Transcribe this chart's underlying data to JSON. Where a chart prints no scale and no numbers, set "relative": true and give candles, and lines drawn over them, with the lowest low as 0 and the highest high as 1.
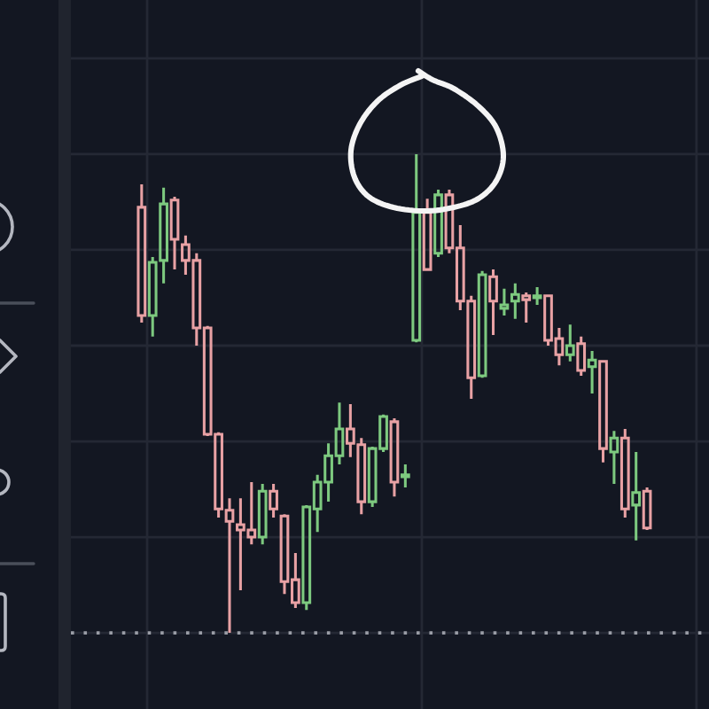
{
  "chart_data": {
    "type": "candlestick",
    "relative": true,
    "categories": [
      null,
      null,
      null,
      null,
      null,
      null,
      null,
      null,
      null,
      null,
      null,
      null,
      null,
      null,
      null,
      null,
      null,
      null,
      null,
      null,
      null,
      null,
      null,
      null,
      null,
      null,
      null,
      null,
      null,
      null,
      null,
      null,
      null,
      null,
      null,
      null,
      null,
      null,
      null,
      null,
      null,
      null,
      null,
      null,
      null,
      null,
      null
    ],
    "ohlc": [
      [
        0.889,
        0.937,
        0.648,
        0.663
      ],
      [
        0.663,
        0.785,
        0.619,
        0.774
      ],
      [
        0.778,
        0.93,
        0.73,
        0.896
      ],
      [
        0.904,
        0.911,
        0.759,
        0.822
      ],
      [
        0.811,
        0.83,
        0.748,
        0.778
      ],
      [
        0.778,
        0.793,
        0.6,
        0.637
      ],
      [
        0.637,
        0.641,
        0.411,
        0.415
      ],
      [
        0.415,
        0.419,
        0.241,
        0.259
      ],
      [
        0.256,
        0.281,
        0,
        0.233
      ],
      [
        0.226,
        0.281,
        0.089,
        0.215
      ],
      [
        0.215,
        0.315,
        0.185,
        0.2
      ],
      [
        0.2,
        0.311,
        0.185,
        0.296
      ],
      [
        0.296,
        0.311,
        0.241,
        0.259
      ],
      [
        0.244,
        0.248,
        0.081,
        0.107
      ],
      [
        0.111,
        0.167,
        0.052,
        0.063
      ],
      [
        0.063,
        0.267,
        0.048,
        0.263
      ],
      [
        0.259,
        0.33,
        0.211,
        0.315
      ],
      [
        0.315,
        0.396,
        0.274,
        0.37
      ],
      [
        0.37,
        0.481,
        0.352,
        0.426
      ],
      [
        0.426,
        0.478,
        0.367,
        0.396
      ],
      [
        0.393,
        0.407,
        0.248,
        0.274
      ],
      [
        0.274,
        0.389,
        0.263,
        0.385
      ],
      [
        0.385,
        0.456,
        0.378,
        0.452
      ],
      [
        0.441,
        0.448,
        0.285,
        0.315
      ],
      [
        0.326,
        0.352,
        0.304,
        0.33
      ],
      [
        0.611,
        1,
        0.607,
        0.878
      ],
      [
        0.878,
        0.907,
        0.759,
        0.759
      ],
      [
        0.793,
        0.926,
        0.785,
        0.915
      ],
      [
        0.915,
        0.926,
        0.793,
        0.804
      ],
      [
        0.804,
        0.852,
        0.674,
        0.693
      ],
      [
        0.693,
        0.704,
        0.489,
        0.533
      ],
      [
        0.537,
        0.756,
        0.533,
        0.748
      ],
      [
        0.744,
        0.759,
        0.622,
        0.693
      ],
      [
        0.678,
        0.719,
        0.663,
        0.685
      ],
      [
        0.693,
        0.73,
        0.656,
        0.707
      ],
      [
        0.704,
        0.711,
        0.648,
        0.696
      ],
      [
        0.7,
        0.722,
        0.685,
        0.704
      ],
      [
        0.704,
        0.704,
        0.6,
        0.611
      ],
      [
        0.615,
        0.637,
        0.559,
        0.581
      ],
      [
        0.581,
        0.644,
        0.567,
        0.6
      ],
      [
        0.604,
        0.619,
        0.537,
        0.548
      ],
      [
        0.556,
        0.589,
        0.5,
        0.57
      ],
      [
        0.567,
        0.57,
        0.356,
        0.385
      ],
      [
        0.378,
        0.422,
        0.311,
        0.407
      ],
      [
        0.407,
        0.426,
        0.241,
        0.259
      ],
      [
        0.267,
        0.378,
        0.193,
        0.293
      ],
      [
        0.296,
        0.304,
        0.215,
        0.219
      ]
    ],
    "colors": [
      "#e8a1a4",
      "#7dc97f",
      "#7dc97f",
      "#e8a1a4",
      "#e8a1a4",
      "#e8a1a4",
      "#e8a1a4",
      "#e8a1a4",
      "#e8a1a4",
      "#e8a1a4",
      "#e8a1a4",
      "#7dc97f",
      "#e8a1a4",
      "#e8a1a4",
      "#e8a1a4",
      "#7dc97f",
      "#7dc97f",
      "#7dc97f",
      "#7dc97f",
      "#e8a1a4",
      "#e8a1a4",
      "#7dc97f",
      "#7dc97f",
      "#e8a1a4",
      "#7dc97f",
      "#7dc97f",
      "#e8a1a4",
      "#7dc97f",
      "#e8a1a4",
      "#e8a1a4",
      "#e8a1a4",
      "#7dc97f",
      "#e8a1a4",
      "#7dc97f",
      "#7dc97f",
      "#e8a1a4",
      "#7dc97f",
      "#e8a1a4",
      "#e8a1a4",
      "#7dc97f",
      "#e8a1a4",
      "#7dc97f",
      "#e8a1a4",
      "#7dc97f",
      "#e8a1a4",
      "#7dc97f",
      "#e8a1a4"
    ],
    "grid": true,
    "tick_labels": false,
    "ref_lines": [
      {
        "axis": "y",
        "value": 0,
        "line_style": "dotted",
        "color": "#9a9da6"
      }
    ]
  }
}
